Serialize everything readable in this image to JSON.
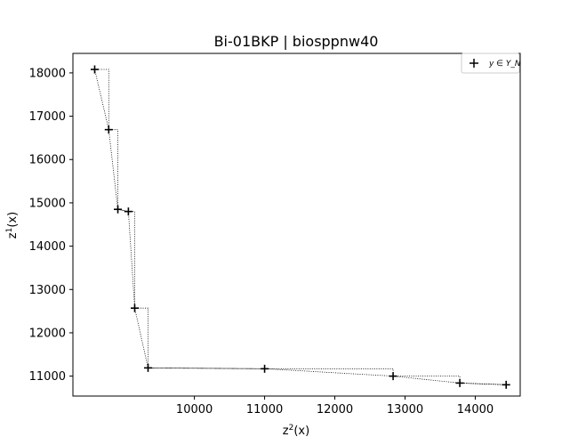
{
  "chart_data": {
    "type": "scatter",
    "title": "Bi-01BKP | biosppnw40",
    "xlabel": "z²(x)",
    "ylabel": "z¹(x)",
    "xlim": [
      8270,
      14640
    ],
    "ylim": [
      10540,
      18450
    ],
    "xticks": [
      10000,
      11000,
      12000,
      13000,
      14000
    ],
    "xtick_labels": [
      "10000",
      "11000",
      "12000",
      "13000",
      "14000"
    ],
    "yticks": [
      11000,
      12000,
      13000,
      14000,
      15000,
      16000,
      17000,
      18000
    ],
    "ytick_labels": [
      "11000",
      "12000",
      "13000",
      "14000",
      "15000",
      "16000",
      "17000",
      "18000"
    ],
    "legend": {
      "entries": [
        "y ∈ Y_N"
      ],
      "placement": "top-right"
    },
    "grid": false,
    "series": [
      {
        "name": "y ∈ Y_N",
        "marker": "+",
        "color": "#000000",
        "x": [
          8580,
          8780,
          8910,
          9060,
          9150,
          9340,
          11000,
          12830,
          13780,
          14440
        ],
        "y": [
          18080,
          16690,
          14850,
          14800,
          12570,
          11190,
          11170,
          11000,
          10840,
          10800
        ]
      }
    ],
    "staircase": {
      "style": "dotted",
      "description_x": [
        8580,
        8780,
        8780,
        8910,
        8910,
        9060,
        9150,
        9150,
        9340,
        9340,
        11000,
        12830,
        12830,
        13780,
        13780,
        14440
      ],
      "description_y": [
        18080,
        18080,
        16690,
        16690,
        14850,
        14800,
        14800,
        12570,
        12570,
        11190,
        11170,
        11170,
        11000,
        11000,
        10840,
        10800
      ]
    }
  }
}
